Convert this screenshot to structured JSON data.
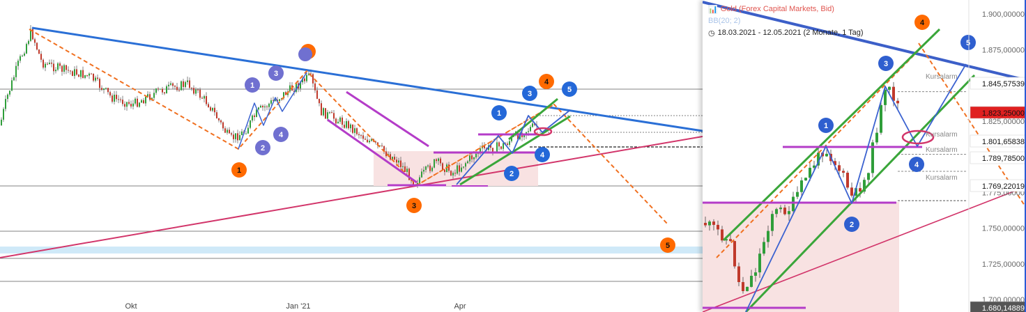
{
  "left_chart": {
    "x_labels": [
      "Okt",
      "Jan '21",
      "Apr"
    ],
    "wave_labels": [
      {
        "text": "1",
        "color": "#7070d0"
      },
      {
        "text": "2",
        "color": "#7070d0"
      },
      {
        "text": "3",
        "color": "#7070d0"
      },
      {
        "text": "4",
        "color": "#7070d0"
      },
      {
        "text": "1",
        "color": "#ff6a00"
      },
      {
        "text": "2",
        "color": "#ff6a00"
      },
      {
        "text": "3",
        "color": "#ff6a00"
      },
      {
        "text": "4",
        "color": "#ff6a00"
      },
      {
        "text": "5",
        "color": "#ff6a00"
      },
      {
        "text": "1",
        "color": "#2468d8"
      },
      {
        "text": "2",
        "color": "#2468d8"
      },
      {
        "text": "3",
        "color": "#2468d8"
      },
      {
        "text": "4",
        "color": "#2468d8"
      },
      {
        "text": "5",
        "color": "#2468d8"
      }
    ]
  },
  "right_chart": {
    "header": {
      "title": "Gold (Forex Capital Markets, Bid)",
      "indicator": "BB(20; 2)",
      "range": "18.03.2021 - 12.05.2021  (2 Monate, 1 Tag)"
    },
    "y_ticks": [
      "1.900,00000",
      "1.875,00000",
      "1.850,00000",
      "1.825,00000",
      "1.800,00000",
      "1.775,00000",
      "1.750,00000",
      "1.725,00000",
      "1.700,00000"
    ],
    "price_tags": [
      {
        "text": "1.845,57539",
        "style": "plain"
      },
      {
        "text": "1.823,25000",
        "style": "current"
      },
      {
        "text": "1.801,65838",
        "style": "plain"
      },
      {
        "text": "1.789,78500",
        "style": "plain"
      },
      {
        "text": "1.769,22019",
        "style": "plain"
      },
      {
        "text": "1.680,14889",
        "style": "dark"
      }
    ],
    "alarm_label": "Kursalarm",
    "wave_labels": [
      {
        "text": "1",
        "color": "#2f5fcf"
      },
      {
        "text": "2",
        "color": "#2f5fcf"
      },
      {
        "text": "3",
        "color": "#2f5fcf"
      },
      {
        "text": "4",
        "color": "#2f5fcf"
      },
      {
        "text": "5",
        "color": "#2f5fcf"
      },
      {
        "text": "4",
        "color": "#ff6a00"
      }
    ]
  },
  "colors": {
    "blue_trend": "#2a6fd6",
    "magenta": "#d2356a",
    "purple": "#b43cc8",
    "orange": "#f07020",
    "green": "#3aa63a",
    "wave_blue": "#3b62d0",
    "price_axis_blue": "#2a5bd6",
    "current_price": "#e02020",
    "zone": "#f8e2e2",
    "band": "#cfe9f8"
  }
}
